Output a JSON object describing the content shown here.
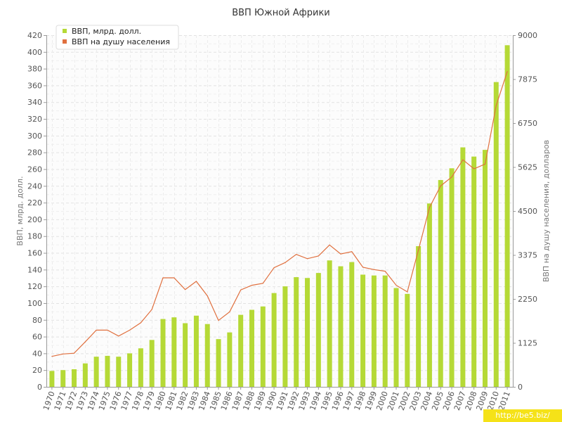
{
  "chart_data": {
    "type": "bar",
    "title": "ВВП Южной Африки",
    "ylabel_left": "ВВП, млрд. долл.",
    "ylabel_right": "ВВП на душу населения, долларов",
    "left_ticks": [
      0,
      20,
      40,
      60,
      80,
      100,
      120,
      140,
      160,
      180,
      200,
      220,
      240,
      260,
      280,
      300,
      320,
      340,
      360,
      380,
      400,
      420
    ],
    "right_ticks": [
      0,
      1125,
      2250,
      3375,
      4500,
      5625,
      6750,
      7875,
      9000
    ],
    "ylim_left": [
      0,
      420
    ],
    "ylim_right": [
      0,
      9000
    ],
    "grid": true,
    "legend_position": "top-left",
    "categories": [
      "1970",
      "1971",
      "1972",
      "1973",
      "1974",
      "1975",
      "1976",
      "1977",
      "1978",
      "1979",
      "1980",
      "1981",
      "1982",
      "1983",
      "1984",
      "1985",
      "1986",
      "1987",
      "1988",
      "1989",
      "1990",
      "1991",
      "1992",
      "1993",
      "1994",
      "1995",
      "1996",
      "1997",
      "1998",
      "1999",
      "2000",
      "2001",
      "2002",
      "2003",
      "2004",
      "2005",
      "2006",
      "2007",
      "2008",
      "2009",
      "2010",
      "2011"
    ],
    "series": [
      {
        "name": "ВВП, млрд. долл.",
        "type": "bar",
        "axis": "left",
        "color": "#b5d936",
        "values": [
          19,
          20,
          21,
          28,
          36,
          37,
          36,
          40,
          46,
          56,
          81,
          83,
          76,
          85,
          75,
          57,
          65,
          86,
          92,
          96,
          112,
          120,
          131,
          130,
          136,
          151,
          144,
          149,
          134,
          133,
          133,
          118,
          111,
          168,
          219,
          247,
          261,
          286,
          275,
          283,
          364,
          408
        ]
      },
      {
        "name": "ВВП на душу населения",
        "type": "line",
        "axis": "right",
        "color": "#e0703f",
        "values": [
          780,
          840,
          860,
          1150,
          1450,
          1450,
          1300,
          1450,
          1640,
          1980,
          2790,
          2790,
          2490,
          2700,
          2330,
          1700,
          1920,
          2480,
          2600,
          2650,
          3050,
          3180,
          3390,
          3280,
          3350,
          3630,
          3400,
          3460,
          3060,
          3000,
          2960,
          2600,
          2430,
          3500,
          4590,
          5140,
          5370,
          5810,
          5580,
          5700,
          7200,
          8070
        ]
      }
    ]
  },
  "legend": {
    "items": [
      {
        "label": "ВВП, млрд. долл.",
        "color": "#b5d936"
      },
      {
        "label": "ВВП на душу населения",
        "color": "#e0703f"
      }
    ]
  },
  "watermark": "http://be5.biz/"
}
